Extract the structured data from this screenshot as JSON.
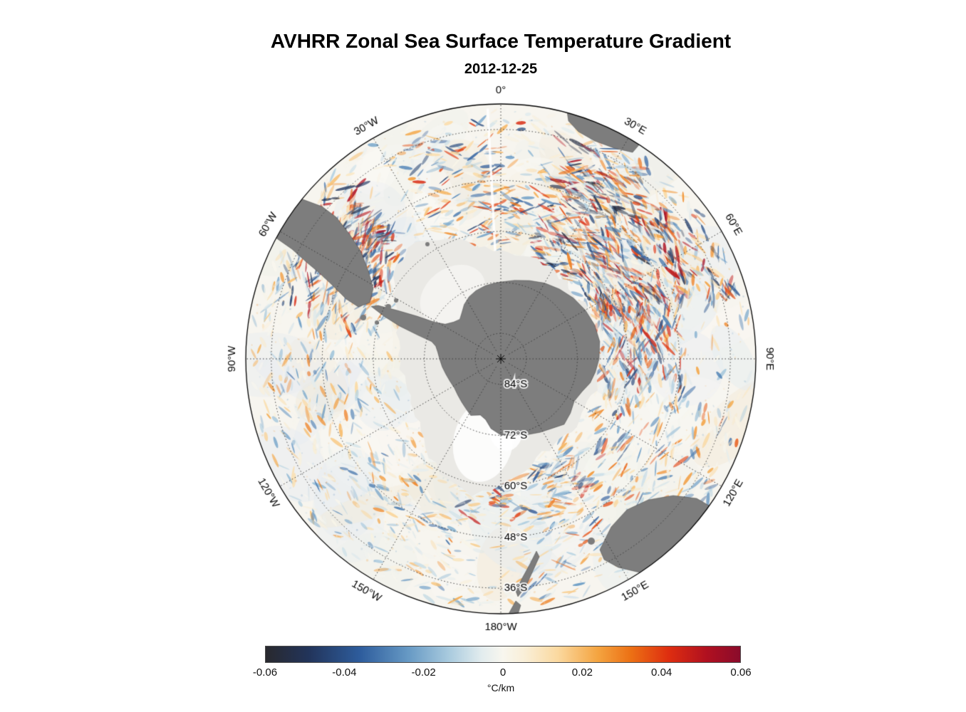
{
  "title": "AVHRR Zonal Sea Surface Temperature Gradient",
  "subtitle": "2012-12-25",
  "chart_data": {
    "type": "heatmap",
    "projection": "south-polar-azimuthal",
    "field": "zonal sea surface temperature gradient",
    "units": "°C/km",
    "value_range": [
      -0.06,
      0.06
    ],
    "colorbar": {
      "label": "°C/km",
      "min": -0.06,
      "max": 0.06,
      "tick_values": [
        -0.06,
        -0.04,
        -0.02,
        0,
        0.02,
        0.04,
        0.06
      ],
      "tick_labels": [
        "-0.06",
        "-0.04",
        "-0.02",
        "0",
        "0.02",
        "0.04",
        "0.06"
      ],
      "colormap_stops": [
        [
          0.0,
          "#29292e"
        ],
        [
          0.09,
          "#22345a"
        ],
        [
          0.2,
          "#2e5d9d"
        ],
        [
          0.3,
          "#6699c4"
        ],
        [
          0.385,
          "#a8cade"
        ],
        [
          0.455,
          "#e2ecee"
        ],
        [
          0.5,
          "#f8f6ee"
        ],
        [
          0.545,
          "#f9efd8"
        ],
        [
          0.615,
          "#fbd9a0"
        ],
        [
          0.7,
          "#f4a440"
        ],
        [
          0.77,
          "#ec7014"
        ],
        [
          0.85,
          "#de2d10"
        ],
        [
          0.93,
          "#b01020"
        ],
        [
          1.0,
          "#8a0b2b"
        ]
      ]
    },
    "graticule": {
      "longitude_spacing_deg": 30,
      "latitude_circles_deg_south": [
        84,
        72,
        60,
        48,
        36
      ],
      "outer_latitude_deg_south": 30,
      "longitude_labels": [
        {
          "azimuth_deg": 0,
          "label": "0°"
        },
        {
          "azimuth_deg": 30,
          "label": "30°E"
        },
        {
          "azimuth_deg": 60,
          "label": "60°E"
        },
        {
          "azimuth_deg": 90,
          "label": "90°E"
        },
        {
          "azimuth_deg": 120,
          "label": "120°E"
        },
        {
          "azimuth_deg": 150,
          "label": "150°E"
        },
        {
          "azimuth_deg": 180,
          "label": "180°W"
        },
        {
          "azimuth_deg": 210,
          "label": "150°W"
        },
        {
          "azimuth_deg": 240,
          "label": "120°W"
        },
        {
          "azimuth_deg": 270,
          "label": "90°W"
        },
        {
          "azimuth_deg": 300,
          "label": "60°W"
        },
        {
          "azimuth_deg": 330,
          "label": "30°W"
        }
      ],
      "latitude_labels": [
        {
          "lat_deg_south": 84,
          "label": "84°S"
        },
        {
          "lat_deg_south": 72,
          "label": "72°S"
        },
        {
          "lat_deg_south": 60,
          "label": "60°S"
        },
        {
          "lat_deg_south": 48,
          "label": "48°S"
        },
        {
          "lat_deg_south": 36,
          "label": "36°S"
        }
      ]
    },
    "land_color": "#7d7d7d",
    "background_color": "#ffffff",
    "landmasses_visible": [
      "Antarctica",
      "South America (Patagonia)",
      "Southern Africa",
      "Australia",
      "New Zealand"
    ]
  }
}
